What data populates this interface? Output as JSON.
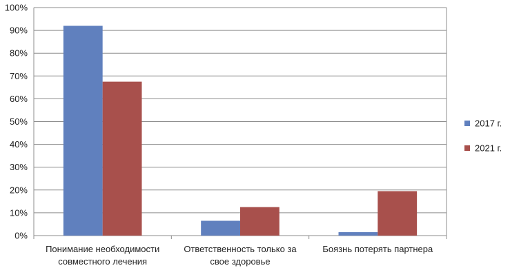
{
  "chart_data": {
    "type": "bar",
    "title": "",
    "xlabel": "",
    "ylabel": "",
    "ylim": [
      0,
      100
    ],
    "yticks": [
      "0%",
      "10%",
      "20%",
      "30%",
      "40%",
      "50%",
      "60%",
      "70%",
      "80%",
      "90%",
      "100%"
    ],
    "y_unit": "%",
    "grid": true,
    "legend_position": "right",
    "categories": [
      [
        "Понимание необходимости",
        "совместного лечения"
      ],
      [
        "Ответственность только за",
        "свое здоровье"
      ],
      [
        "Боязнь потерять партнера"
      ]
    ],
    "series": [
      {
        "name": "2017 г.",
        "color": "#6080BE",
        "values": [
          92,
          6.5,
          1.5
        ]
      },
      {
        "name": "2021 г.",
        "color": "#A8504C",
        "values": [
          67.5,
          12.5,
          19.5
        ]
      }
    ]
  }
}
